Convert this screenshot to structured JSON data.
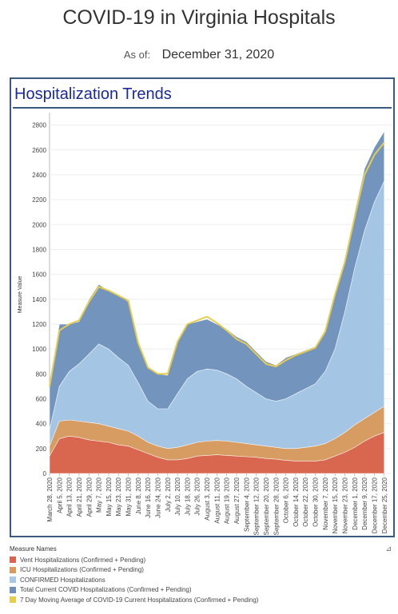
{
  "header": {
    "title": "COVID-19 in Virginia Hospitals",
    "as_of_label": "As of:",
    "as_of_date": "December 31, 2020"
  },
  "panel": {
    "title": "Hospitalization Trends"
  },
  "legend": {
    "title": "Measure Names",
    "items": [
      {
        "label": "Vent Hospitalizations (Confirmed + Pending)",
        "color": "#d9644f"
      },
      {
        "label": "ICU Hospitalizations (Confirmed + Pending)",
        "color": "#d99a5b"
      },
      {
        "label": "CONFIRMED Hospitalizations",
        "color": "#a6c8e6"
      },
      {
        "label": "Total Current COVID Hospitalizations (Confirmed + Pending)",
        "color": "#6c8fb9"
      },
      {
        "label": "7 Day Moving Average of COVID-19 Current Hospitalizations (Confirmed + Pending)",
        "color": "#e7cd4e"
      }
    ]
  },
  "chart_data": {
    "type": "area",
    "ylabel": "Measure Value",
    "ylim": [
      0,
      2900
    ],
    "yticks": [
      0,
      200,
      400,
      600,
      800,
      1000,
      1200,
      1400,
      1600,
      1800,
      2000,
      2200,
      2400,
      2600,
      2800
    ],
    "x_dates": [
      "March 28, 2020",
      "April 5, 2020",
      "April 13, 2020",
      "April 21, 2020",
      "April 29, 2020",
      "May 7, 2020",
      "May 15, 2020",
      "May 23, 2020",
      "May 31, 2020",
      "June 8, 2020",
      "June 16, 2020",
      "June 24, 2020",
      "July 2, 2020",
      "July 10, 2020",
      "July 18, 2020",
      "July 26, 2020",
      "August 3, 2020",
      "August 11, 2020",
      "August 19, 2020",
      "August 27, 2020",
      "September 4, 2020",
      "September 12, 2020",
      "September 20, 2020",
      "September 28, 2020",
      "October 6, 2020",
      "October 14, 2020",
      "October 22, 2020",
      "October 30, 2020",
      "November 7, 2020",
      "November 15, 2020",
      "November 23, 2020",
      "December 1, 2020",
      "December 9, 2020",
      "December 17, 2020",
      "December 25, 2020"
    ],
    "x_range": [
      "March 28, 2020",
      "December 31, 2020"
    ],
    "series": [
      {
        "name": "Vent Hospitalizations (Confirmed + Pending)",
        "values": [
          140,
          280,
          300,
          290,
          270,
          260,
          250,
          230,
          220,
          190,
          160,
          130,
          110,
          110,
          120,
          140,
          145,
          150,
          145,
          140,
          135,
          130,
          120,
          115,
          105,
          100,
          100,
          100,
          110,
          140,
          170,
          210,
          260,
          300,
          330
        ]
      },
      {
        "name": "ICU Hospitalizations (Confirmed + Pending)",
        "values": [
          220,
          420,
          430,
          420,
          410,
          400,
          380,
          360,
          340,
          300,
          250,
          220,
          200,
          210,
          230,
          250,
          260,
          265,
          260,
          250,
          240,
          230,
          220,
          210,
          200,
          200,
          210,
          220,
          240,
          280,
          330,
          390,
          440,
          490,
          540
        ]
      },
      {
        "name": "CONFIRMED Hospitalizations",
        "values": [
          350,
          700,
          820,
          880,
          960,
          1040,
          1000,
          930,
          870,
          730,
          580,
          520,
          520,
          640,
          760,
          820,
          840,
          830,
          800,
          760,
          700,
          650,
          600,
          580,
          600,
          640,
          680,
          720,
          820,
          1000,
          1300,
          1650,
          1950,
          2180,
          2350
        ]
      },
      {
        "name": "Total Current COVID Hospitalizations (Confirmed + Pending)",
        "values": [
          720,
          1200,
          1200,
          1220,
          1400,
          1520,
          1470,
          1440,
          1380,
          1050,
          850,
          800,
          790,
          1060,
          1200,
          1220,
          1240,
          1200,
          1160,
          1100,
          1060,
          980,
          900,
          870,
          930,
          960,
          990,
          1020,
          1150,
          1450,
          1700,
          2100,
          2450,
          2620,
          2750
        ]
      },
      {
        "name": "7 Day Moving Average of COVID-19 Current Hospitalizations (Confirmed + Pending)",
        "values": [
          700,
          1150,
          1200,
          1230,
          1380,
          1500,
          1470,
          1430,
          1390,
          1050,
          850,
          800,
          800,
          1060,
          1200,
          1230,
          1260,
          1210,
          1150,
          1080,
          1040,
          960,
          880,
          860,
          910,
          950,
          980,
          1010,
          1140,
          1440,
          1700,
          2060,
          2400,
          2560,
          2660
        ]
      }
    ]
  }
}
